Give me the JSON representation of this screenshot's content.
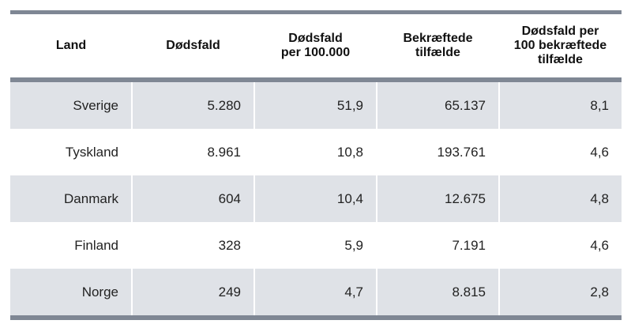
{
  "table": {
    "headers": [
      [
        "Land"
      ],
      [
        "Dødsfald"
      ],
      [
        "Dødsfald",
        "per 100.000"
      ],
      [
        "Bekræftede",
        "tilfælde"
      ],
      [
        "Dødsfald per",
        "100 bekræftede",
        "tilfælde"
      ]
    ],
    "rows": [
      [
        "Sverige",
        "5.280",
        "51,9",
        "65.137",
        "8,1"
      ],
      [
        "Tyskland",
        "8.961",
        "10,8",
        "193.761",
        "4,6"
      ],
      [
        "Danmark",
        "604",
        "10,4",
        "12.675",
        "4,8"
      ],
      [
        "Finland",
        "328",
        "5,9",
        "7.191",
        "4,6"
      ],
      [
        "Norge",
        "249",
        "4,7",
        "8.815",
        "2,8"
      ]
    ]
  },
  "colors": {
    "rule": "#7f8794",
    "shaded_row": "#dfe2e7"
  }
}
